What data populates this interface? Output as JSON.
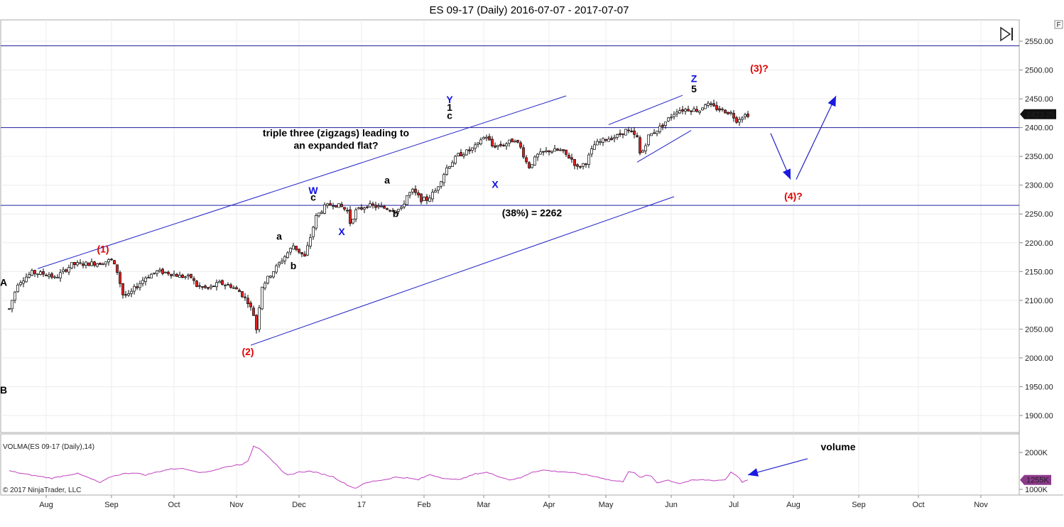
{
  "chart_data": {
    "type": "candlestick",
    "title": "ES 09-17 (Daily)  2016-07-07 - 2017-07-07",
    "copyright": "© 2017 NinjaTrader, LLC",
    "price_axis": {
      "min": 1875,
      "max": 2575,
      "ticks": [
        "2550.00",
        "2500.00",
        "2450.00",
        "2400.00",
        "2350.00",
        "2300.00",
        "2250.00",
        "2200.00",
        "2150.00",
        "2100.00",
        "2050.00",
        "2000.00",
        "1950.00",
        "1900.00"
      ],
      "last_price_label": "2423.25"
    },
    "time_axis": {
      "ticks": [
        {
          "label": "Aug",
          "t": 13
        },
        {
          "label": "Sep",
          "t": 36
        },
        {
          "label": "Oct",
          "t": 58
        },
        {
          "label": "Nov",
          "t": 80
        },
        {
          "label": "Dec",
          "t": 102
        },
        {
          "label": "17",
          "t": 124
        },
        {
          "label": "Feb",
          "t": 146
        },
        {
          "label": "Mar",
          "t": 167
        },
        {
          "label": "Apr",
          "t": 190
        },
        {
          "label": "May",
          "t": 210
        },
        {
          "label": "Jun",
          "t": 233
        },
        {
          "label": "Jul",
          "t": 255
        },
        {
          "label": "Aug",
          "t": 276
        },
        {
          "label": "Sep",
          "t": 299
        },
        {
          "label": "Oct",
          "t": 320
        },
        {
          "label": "Nov",
          "t": 342
        }
      ]
    },
    "path_anchors": [
      [
        0,
        2085
      ],
      [
        3,
        2130
      ],
      [
        8,
        2148
      ],
      [
        14,
        2145
      ],
      [
        16,
        2138
      ],
      [
        22,
        2162
      ],
      [
        32,
        2165
      ],
      [
        36,
        2170
      ],
      [
        38,
        2150
      ],
      [
        40,
        2110
      ],
      [
        42,
        2108
      ],
      [
        44,
        2120
      ],
      [
        48,
        2140
      ],
      [
        52,
        2150
      ],
      [
        56,
        2148
      ],
      [
        60,
        2142
      ],
      [
        64,
        2140
      ],
      [
        66,
        2125
      ],
      [
        70,
        2120
      ],
      [
        74,
        2130
      ],
      [
        78,
        2125
      ],
      [
        81,
        2115
      ],
      [
        84,
        2098
      ],
      [
        86,
        2075
      ],
      [
        87,
        2050
      ],
      [
        88,
        2090
      ],
      [
        89,
        2125
      ],
      [
        92,
        2145
      ],
      [
        96,
        2170
      ],
      [
        100,
        2195
      ],
      [
        102,
        2185
      ],
      [
        104,
        2175
      ],
      [
        106,
        2210
      ],
      [
        108,
        2245
      ],
      [
        111,
        2262
      ],
      [
        114,
        2268
      ],
      [
        117,
        2262
      ],
      [
        119,
        2255
      ],
      [
        120,
        2235
      ],
      [
        122,
        2255
      ],
      [
        126,
        2265
      ],
      [
        130,
        2262
      ],
      [
        135,
        2258
      ],
      [
        138,
        2258
      ],
      [
        140,
        2282
      ],
      [
        142,
        2290
      ],
      [
        145,
        2275
      ],
      [
        147,
        2275
      ],
      [
        150,
        2290
      ],
      [
        154,
        2330
      ],
      [
        158,
        2352
      ],
      [
        162,
        2360
      ],
      [
        165,
        2370
      ],
      [
        166,
        2380
      ],
      [
        168,
        2385
      ],
      [
        170,
        2368
      ],
      [
        174,
        2370
      ],
      [
        178,
        2380
      ],
      [
        180,
        2365
      ],
      [
        182,
        2340
      ],
      [
        183,
        2332
      ],
      [
        186,
        2352
      ],
      [
        190,
        2360
      ],
      [
        194,
        2360
      ],
      [
        198,
        2345
      ],
      [
        200,
        2330
      ],
      [
        203,
        2340
      ],
      [
        206,
        2370
      ],
      [
        210,
        2380
      ],
      [
        214,
        2385
      ],
      [
        217,
        2395
      ],
      [
        219,
        2390
      ],
      [
        221,
        2382
      ],
      [
        222,
        2355
      ],
      [
        223,
        2360
      ],
      [
        225,
        2385
      ],
      [
        229,
        2400
      ],
      [
        232,
        2415
      ],
      [
        235,
        2430
      ],
      [
        239,
        2432
      ],
      [
        243,
        2430
      ],
      [
        245,
        2442
      ],
      [
        248,
        2435
      ],
      [
        251,
        2430
      ],
      [
        254,
        2425
      ],
      [
        256,
        2413
      ],
      [
        258,
        2420
      ],
      [
        260,
        2423
      ]
    ],
    "volume_indicator": {
      "label": "VOLMA(ES 09-17 (Daily),14)",
      "min": 950,
      "max": 2200,
      "ticks": [
        "2000K",
        "1000K"
      ],
      "last_label": "1255K",
      "path": [
        [
          0,
          1500
        ],
        [
          5,
          1420
        ],
        [
          10,
          1360
        ],
        [
          15,
          1300
        ],
        [
          20,
          1380
        ],
        [
          24,
          1430
        ],
        [
          28,
          1310
        ],
        [
          32,
          1180
        ],
        [
          36,
          1350
        ],
        [
          40,
          1420
        ],
        [
          44,
          1450
        ],
        [
          48,
          1390
        ],
        [
          52,
          1470
        ],
        [
          56,
          1540
        ],
        [
          60,
          1570
        ],
        [
          64,
          1520
        ],
        [
          68,
          1450
        ],
        [
          72,
          1520
        ],
        [
          76,
          1600
        ],
        [
          80,
          1660
        ],
        [
          82,
          1680
        ],
        [
          84,
          1750
        ],
        [
          86,
          2170
        ],
        [
          88,
          2120
        ],
        [
          90,
          1980
        ],
        [
          92,
          1830
        ],
        [
          94,
          1660
        ],
        [
          96,
          1480
        ],
        [
          98,
          1380
        ],
        [
          102,
          1470
        ],
        [
          106,
          1490
        ],
        [
          110,
          1420
        ],
        [
          114,
          1340
        ],
        [
          118,
          1160
        ],
        [
          120,
          1080
        ],
        [
          122,
          1030
        ],
        [
          124,
          1130
        ],
        [
          128,
          1220
        ],
        [
          132,
          1260
        ],
        [
          136,
          1330
        ],
        [
          140,
          1310
        ],
        [
          144,
          1260
        ],
        [
          148,
          1400
        ],
        [
          152,
          1320
        ],
        [
          156,
          1260
        ],
        [
          160,
          1300
        ],
        [
          164,
          1420
        ],
        [
          168,
          1460
        ],
        [
          172,
          1360
        ],
        [
          176,
          1260
        ],
        [
          180,
          1310
        ],
        [
          184,
          1470
        ],
        [
          188,
          1520
        ],
        [
          192,
          1490
        ],
        [
          196,
          1470
        ],
        [
          200,
          1430
        ],
        [
          204,
          1380
        ],
        [
          208,
          1320
        ],
        [
          212,
          1240
        ],
        [
          216,
          1210
        ],
        [
          218,
          1490
        ],
        [
          220,
          1440
        ],
        [
          222,
          1320
        ],
        [
          224,
          1370
        ],
        [
          226,
          1360
        ],
        [
          228,
          1180
        ],
        [
          230,
          1220
        ],
        [
          232,
          1250
        ],
        [
          234,
          1200
        ],
        [
          236,
          1160
        ],
        [
          240,
          1240
        ],
        [
          244,
          1260
        ],
        [
          248,
          1240
        ],
        [
          252,
          1260
        ],
        [
          254,
          1470
        ],
        [
          256,
          1380
        ],
        [
          258,
          1200
        ],
        [
          260,
          1255
        ]
      ]
    },
    "horizontal_lines": [
      {
        "price": 2542
      },
      {
        "price": 2400
      },
      {
        "price": 2265
      }
    ],
    "trend_lines": [
      {
        "t1": 10,
        "p1": 2155,
        "t2": 196,
        "p2": 2455
      },
      {
        "t1": 85,
        "p1": 2022,
        "t2": 234,
        "p2": 2280
      },
      {
        "t1": 211,
        "p1": 2405,
        "t2": 237,
        "p2": 2456
      },
      {
        "t1": 221,
        "p1": 2340,
        "t2": 240,
        "p2": 2395
      }
    ],
    "arrows": [
      {
        "t1": 268,
        "p1": 2390,
        "t2": 275,
        "p2": 2310
      },
      {
        "t1": 277,
        "p1": 2310,
        "t2": 291,
        "p2": 2455
      }
    ],
    "annotations": [
      {
        "text": "(1)",
        "t": 33,
        "p": 2183,
        "color": "#e00000"
      },
      {
        "text": "(2)",
        "t": 84,
        "p": 2005,
        "color": "#e00000"
      },
      {
        "text": "(3)?",
        "t": 264,
        "p": 2497,
        "color": "#e00000"
      },
      {
        "text": "(4)?",
        "t": 276,
        "p": 2275,
        "color": "#e00000"
      },
      {
        "text": "W",
        "t": 107,
        "p": 2285,
        "color": "#1010e0"
      },
      {
        "text": "X",
        "t": 117,
        "p": 2213,
        "color": "#1010e0"
      },
      {
        "text": "Y",
        "t": 155,
        "p": 2443,
        "color": "#1010e0"
      },
      {
        "text": "X",
        "t": 171,
        "p": 2295,
        "color": "#1010e0"
      },
      {
        "text": "Z",
        "t": 241,
        "p": 2479,
        "color": "#1010e0"
      },
      {
        "text": "c",
        "t": 107,
        "p": 2273,
        "color": "#000000"
      },
      {
        "text": "a",
        "t": 95,
        "p": 2205,
        "color": "#000000"
      },
      {
        "text": "b",
        "t": 100,
        "p": 2154,
        "color": "#000000"
      },
      {
        "text": "a",
        "t": 133,
        "p": 2303,
        "color": "#000000"
      },
      {
        "text": "b",
        "t": 136,
        "p": 2245,
        "color": "#000000"
      },
      {
        "text": "1",
        "t": 155,
        "p": 2429,
        "color": "#000000"
      },
      {
        "text": "c",
        "t": 155,
        "p": 2415,
        "color": "#000000"
      },
      {
        "text": "5",
        "t": 241,
        "p": 2461,
        "color": "#000000"
      },
      {
        "text": "A",
        "t": -2,
        "p": 2125,
        "color": "#000000"
      },
      {
        "text": "B",
        "t": -2,
        "p": 1938,
        "color": "#000000"
      }
    ],
    "notes": [
      {
        "text": "triple three (zigzags) leading to",
        "t": 115,
        "p": 2385
      },
      {
        "text": "an expanded flat?",
        "t": 115,
        "p": 2363
      },
      {
        "text": "(38%) = 2262",
        "t": 184,
        "p": 2246
      }
    ],
    "volume_label": "volume"
  },
  "ui": {
    "panel_label": "F",
    "scroll_end_icon": "skip-to-end-icon"
  }
}
